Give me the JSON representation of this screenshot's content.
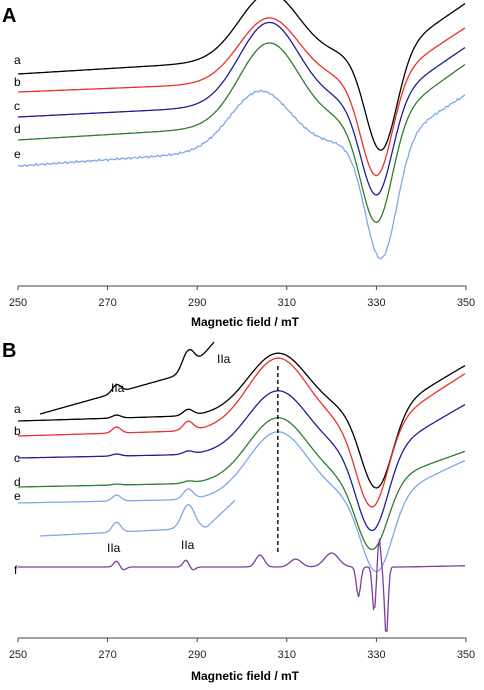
{
  "chart_data": [
    {
      "panel": "A",
      "type": "line",
      "xlabel": "Magnetic field / mT",
      "xlim": [
        250,
        350
      ],
      "xticks": [
        250,
        270,
        290,
        310,
        330,
        350
      ],
      "curve_labels": [
        "a",
        "b",
        "c",
        "d",
        "e"
      ],
      "colors": {
        "a": "#000000",
        "b": "#e8322b",
        "c": "#1f1f8f",
        "d": "#2e7d2e",
        "e": "#7ea8e6"
      },
      "series": [
        {
          "id": "a",
          "offset": 66,
          "min_at": 331,
          "max_at": 306,
          "shape": "broad"
        },
        {
          "id": "b",
          "offset": 88,
          "min_at": 330,
          "max_at": 306,
          "shape": "broad"
        },
        {
          "id": "c",
          "offset": 112,
          "min_at": 330,
          "max_at": 306,
          "shape": "broad"
        },
        {
          "id": "d",
          "offset": 134,
          "min_at": 330,
          "max_at": 306,
          "shape": "broad"
        },
        {
          "id": "e",
          "offset": 160,
          "min_at": 331,
          "max_at": 304,
          "shape": "broad-noisy"
        }
      ]
    },
    {
      "panel": "B",
      "type": "line",
      "xlabel": "Magnetic field / mT",
      "xlim": [
        250,
        350
      ],
      "xticks": [
        250,
        270,
        290,
        310,
        330,
        350
      ],
      "curve_labels": [
        "a",
        "b",
        "c",
        "d",
        "e",
        "f"
      ],
      "colors": {
        "a": "#000000",
        "b": "#e8322b",
        "c": "#1f1f8f",
        "d": "#2e7d2e",
        "e": "#7ea8e6",
        "f": "#7b3f9b"
      },
      "annotations": [
        "IIa",
        "IIa",
        "IIa",
        "IIa"
      ],
      "marker_field": 308,
      "series": [
        {
          "id": "a",
          "min_at": 330,
          "max_at": 308
        },
        {
          "id": "b",
          "min_at": 329,
          "max_at": 308
        },
        {
          "id": "c",
          "min_at": 329,
          "max_at": 308
        },
        {
          "id": "d",
          "min_at": 329,
          "max_at": 308
        },
        {
          "id": "e",
          "min_at": 330,
          "max_at": 308
        },
        {
          "id": "f",
          "min_at": 332,
          "max_at": 304
        }
      ]
    }
  ],
  "panels": {
    "A": {
      "letter": "A",
      "xlabel": "Magnetic field / mT",
      "ticks": [
        "250",
        "270",
        "290",
        "310",
        "330",
        "350"
      ],
      "labels": [
        "a",
        "b",
        "c",
        "d",
        "e"
      ]
    },
    "B": {
      "letter": "B",
      "xlabel": "Magnetic field / mT",
      "ticks": [
        "250",
        "270",
        "290",
        "310",
        "330",
        "350"
      ],
      "labels": [
        "a",
        "b",
        "c",
        "d",
        "e",
        "f"
      ],
      "iia": "IIa"
    }
  }
}
